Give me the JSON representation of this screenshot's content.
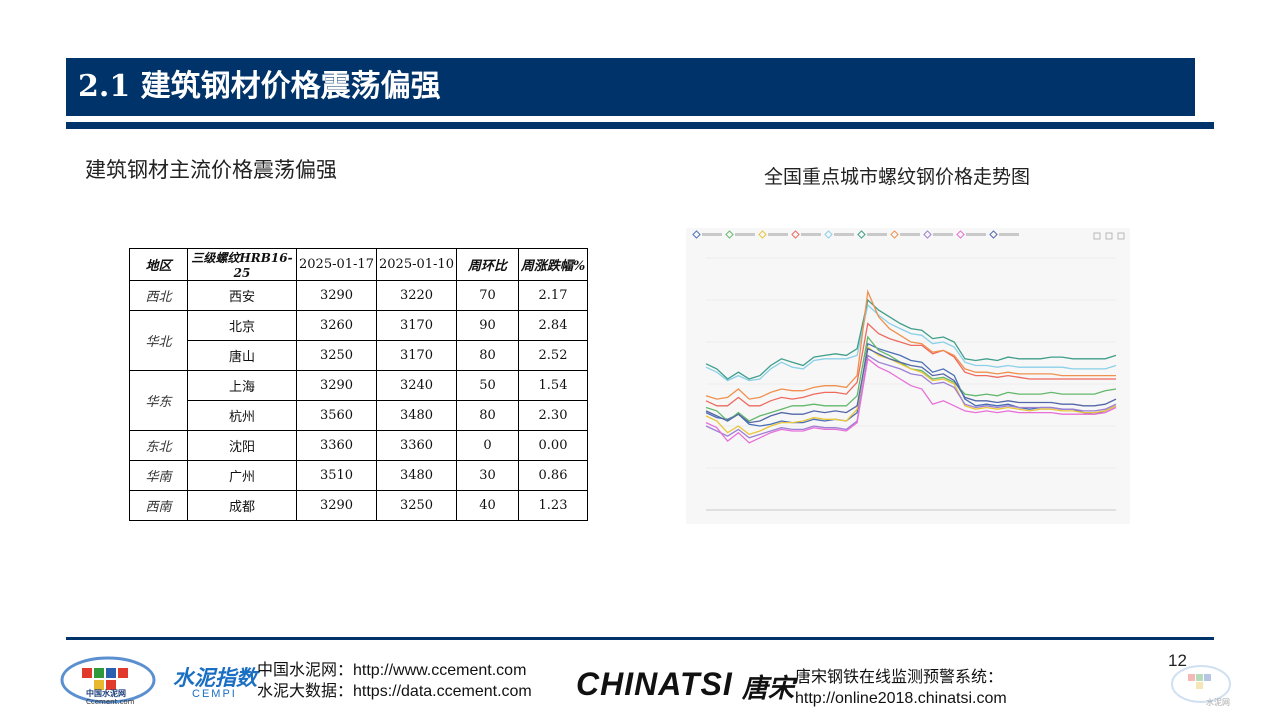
{
  "header": {
    "title": "2.1 建筑钢材价格震荡偏强"
  },
  "left": {
    "subtitle": "建筑钢材主流价格震荡偏强"
  },
  "right": {
    "caption": "全国重点城市螺纹钢价格走势图"
  },
  "table": {
    "headers": [
      "地区",
      "三级螺纹HRB16-25",
      "2025-01-17",
      "2025-01-10",
      "周环比",
      "周涨跌幅%"
    ],
    "rows": [
      {
        "region": "西北",
        "city": "西安",
        "p1": "3290",
        "p2": "3220",
        "wow": "70",
        "pct": "2.17"
      },
      {
        "region": "华北",
        "city": "北京",
        "p1": "3260",
        "p2": "3170",
        "wow": "90",
        "pct": "2.84"
      },
      {
        "region": "",
        "city": "唐山",
        "p1": "3250",
        "p2": "3170",
        "wow": "80",
        "pct": "2.52"
      },
      {
        "region": "华东",
        "city": "上海",
        "p1": "3290",
        "p2": "3240",
        "wow": "50",
        "pct": "1.54"
      },
      {
        "region": "",
        "city": "杭州",
        "p1": "3560",
        "p2": "3480",
        "wow": "80",
        "pct": "2.30"
      },
      {
        "region": "东北",
        "city": "沈阳",
        "p1": "3360",
        "p2": "3360",
        "wow": "0",
        "pct": "0.00"
      },
      {
        "region": "华南",
        "city": "广州",
        "p1": "3510",
        "p2": "3480",
        "wow": "30",
        "pct": "0.86"
      },
      {
        "region": "西南",
        "city": "成都",
        "p1": "3290",
        "p2": "3250",
        "wow": "40",
        "pct": "1.23"
      }
    ]
  },
  "chart_data": {
    "type": "line",
    "title": "",
    "ylim": [
      2800,
      4300
    ],
    "series": [
      {
        "color": "#4a6fb5",
        "values": [
          3380,
          3350,
          3340,
          3370,
          3310,
          3300,
          3310,
          3330,
          3320,
          3320,
          3340,
          3330,
          3340,
          3330,
          3380,
          3790,
          3760,
          3740,
          3720,
          3690,
          3680,
          3620,
          3640,
          3600,
          3460,
          3420,
          3430,
          3420,
          3430,
          3410,
          3400,
          3410,
          3410,
          3400,
          3400,
          3380,
          3370,
          3390,
          3420
        ]
      },
      {
        "color": "#63b86b",
        "values": [
          3410,
          3390,
          3330,
          3380,
          3330,
          3360,
          3380,
          3400,
          3420,
          3420,
          3430,
          3420,
          3420,
          3420,
          3480,
          3830,
          3750,
          3720,
          3680,
          3640,
          3630,
          3580,
          3590,
          3560,
          3490,
          3480,
          3490,
          3480,
          3500,
          3490,
          3490,
          3490,
          3500,
          3490,
          3490,
          3490,
          3490,
          3510,
          3520
        ]
      },
      {
        "color": "#e8c53a",
        "values": [
          3360,
          3330,
          3260,
          3300,
          3250,
          3270,
          3300,
          3320,
          3320,
          3330,
          3350,
          3340,
          3340,
          3330,
          3400,
          3770,
          3720,
          3700,
          3670,
          3640,
          3620,
          3570,
          3580,
          3550,
          3420,
          3400,
          3410,
          3400,
          3410,
          3400,
          3390,
          3400,
          3400,
          3390,
          3390,
          3380,
          3380,
          3390,
          3420
        ]
      },
      {
        "color": "#ee6a5e",
        "values": [
          3450,
          3420,
          3420,
          3470,
          3420,
          3420,
          3450,
          3470,
          3460,
          3470,
          3490,
          3500,
          3500,
          3490,
          3560,
          3910,
          3850,
          3820,
          3800,
          3780,
          3780,
          3730,
          3750,
          3710,
          3620,
          3600,
          3600,
          3590,
          3600,
          3590,
          3580,
          3580,
          3580,
          3580,
          3580,
          3580,
          3580,
          3580,
          3580
        ]
      },
      {
        "color": "#8ad0e8",
        "values": [
          3650,
          3620,
          3570,
          3600,
          3570,
          3580,
          3640,
          3680,
          3650,
          3640,
          3690,
          3700,
          3700,
          3700,
          3720,
          4020,
          3960,
          3910,
          3880,
          3850,
          3840,
          3790,
          3800,
          3770,
          3680,
          3660,
          3660,
          3650,
          3660,
          3650,
          3650,
          3650,
          3650,
          3650,
          3640,
          3640,
          3640,
          3640,
          3660
        ]
      },
      {
        "color": "#3f9e8a",
        "values": [
          3670,
          3640,
          3580,
          3620,
          3580,
          3600,
          3660,
          3700,
          3680,
          3660,
          3710,
          3720,
          3730,
          3720,
          3760,
          4050,
          3990,
          3950,
          3910,
          3880,
          3870,
          3820,
          3830,
          3800,
          3700,
          3690,
          3700,
          3690,
          3710,
          3700,
          3700,
          3700,
          3710,
          3710,
          3700,
          3700,
          3700,
          3700,
          3720
        ]
      },
      {
        "color": "#f0904e",
        "values": [
          3480,
          3460,
          3470,
          3520,
          3460,
          3470,
          3500,
          3520,
          3510,
          3510,
          3530,
          3540,
          3540,
          3530,
          3600,
          4100,
          3950,
          3880,
          3840,
          3800,
          3790,
          3740,
          3750,
          3720,
          3640,
          3620,
          3620,
          3610,
          3620,
          3610,
          3610,
          3610,
          3610,
          3600,
          3600,
          3600,
          3600,
          3600,
          3600
        ]
      },
      {
        "color": "#9d7fd3",
        "values": [
          3300,
          3270,
          3240,
          3280,
          3230,
          3250,
          3270,
          3290,
          3280,
          3280,
          3300,
          3290,
          3290,
          3280,
          3330,
          3720,
          3680,
          3660,
          3640,
          3610,
          3600,
          3550,
          3560,
          3530,
          3430,
          3410,
          3420,
          3410,
          3420,
          3410,
          3410,
          3410,
          3410,
          3400,
          3400,
          3390,
          3390,
          3400,
          3430
        ]
      },
      {
        "color": "#e86fd8",
        "values": [
          3320,
          3290,
          3210,
          3260,
          3200,
          3230,
          3260,
          3280,
          3270,
          3270,
          3290,
          3280,
          3280,
          3270,
          3320,
          3700,
          3650,
          3620,
          3580,
          3540,
          3520,
          3430,
          3450,
          3420,
          3390,
          3380,
          3390,
          3380,
          3390,
          3380,
          3380,
          3380,
          3380,
          3370,
          3370,
          3370,
          3370,
          3380,
          3410
        ]
      },
      {
        "color": "#5367a8",
        "values": [
          3390,
          3360,
          3330,
          3370,
          3320,
          3330,
          3360,
          3380,
          3370,
          3370,
          3390,
          3380,
          3390,
          3380,
          3420,
          3760,
          3730,
          3700,
          3680,
          3660,
          3650,
          3600,
          3610,
          3570,
          3470,
          3450,
          3450,
          3440,
          3450,
          3440,
          3440,
          3440,
          3440,
          3430,
          3430,
          3420,
          3420,
          3430,
          3460
        ]
      }
    ]
  },
  "footer": {
    "logo_cement_text": "中国水泥网",
    "logo_cement_sub": "Ccement.com",
    "logo_cempi_text": "水泥指数",
    "logo_cempi_sub": "CEMPI",
    "line1": "中国水泥网：http://www.ccement.com",
    "line2": "水泥大数据：https://data.ccement.com",
    "chinatsi": "CHINATSI",
    "chinatsi_cn": "唐宋",
    "warn1": "唐宋钢铁在线监测预警系统：",
    "warn2": "http://online2018.chinatsi.com",
    "page": "12",
    "watermark": "水泥网"
  },
  "colors": {
    "brand": "#00336a"
  }
}
